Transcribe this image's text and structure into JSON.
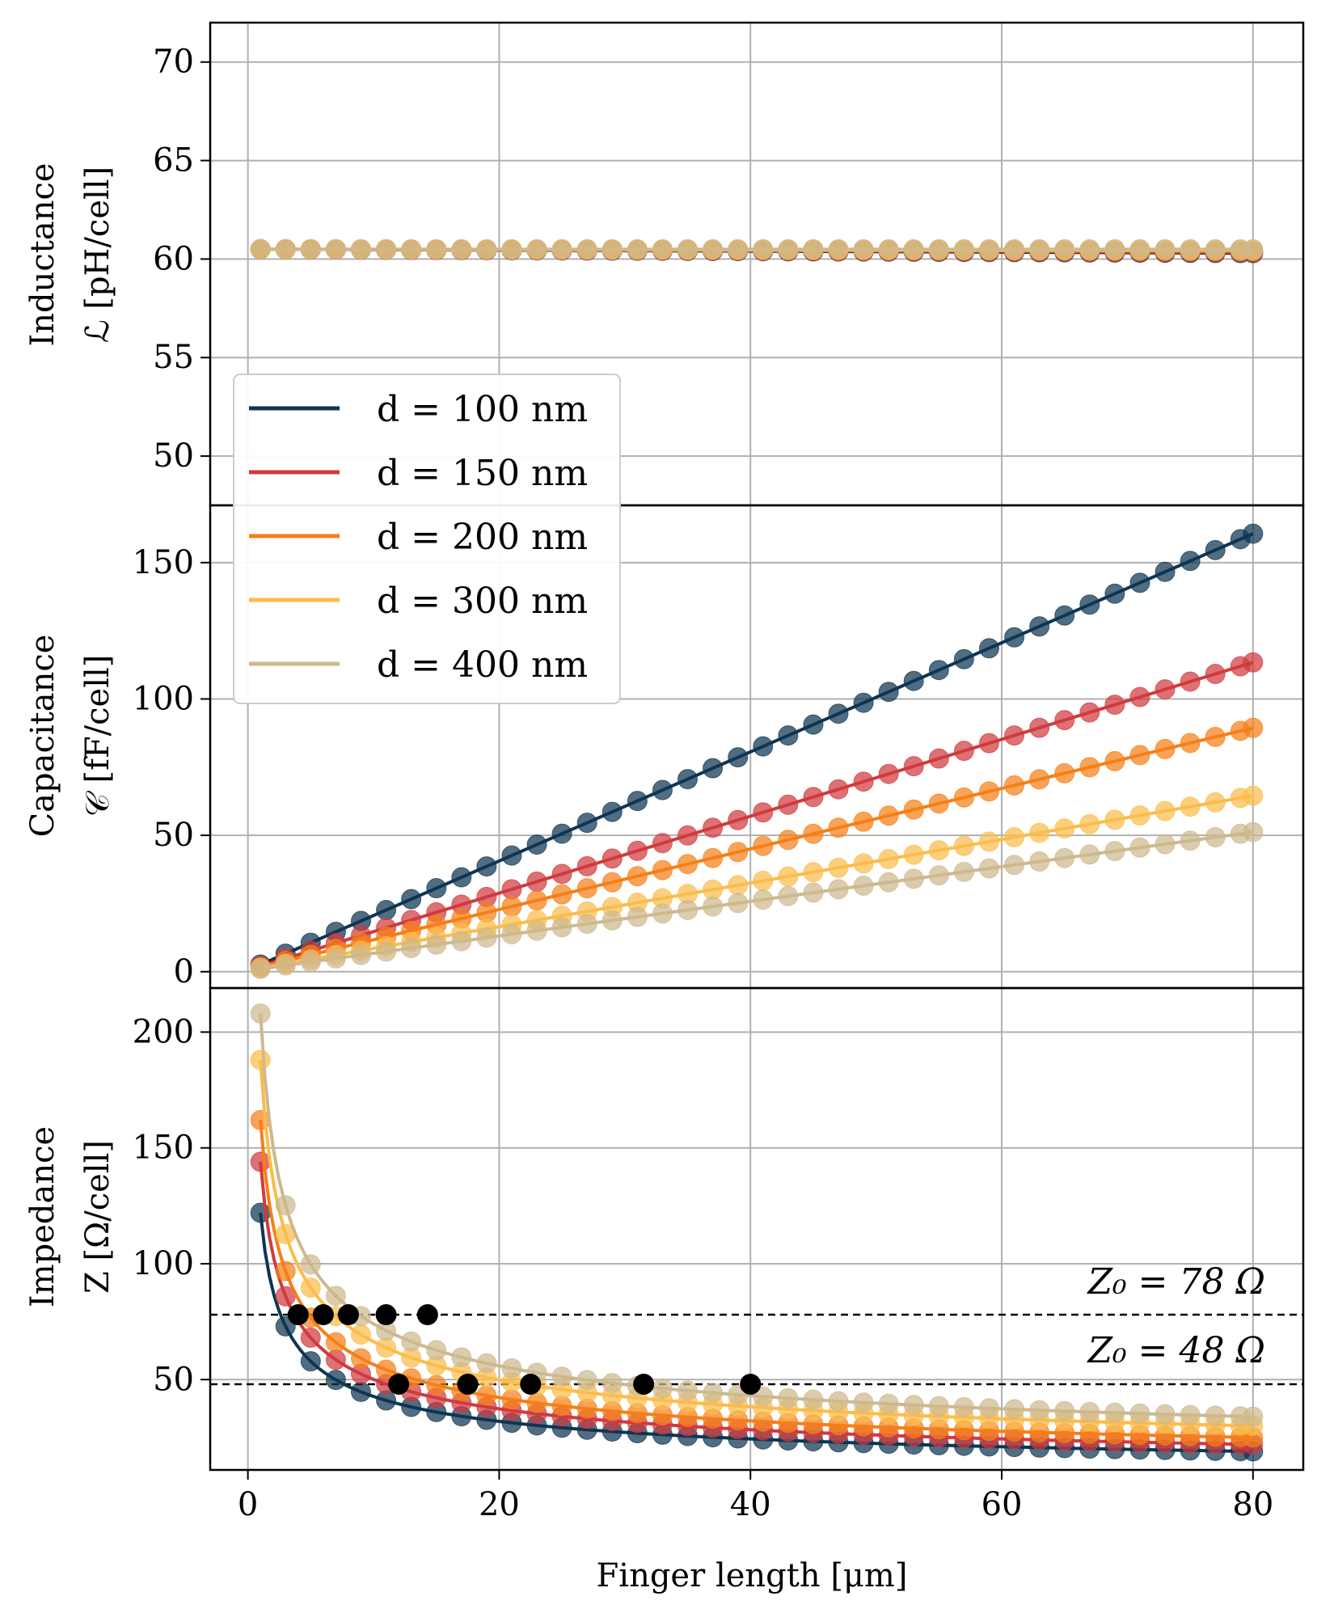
{
  "chart_data": {
    "type": "line",
    "xlabel": "Finger length [μm]",
    "xlim": [
      -3,
      84
    ],
    "xticks": [
      0,
      20,
      40,
      60,
      80
    ],
    "x": [
      1,
      3,
      5,
      7,
      9,
      11,
      13,
      15,
      17,
      19,
      21,
      23,
      25,
      27,
      29,
      31,
      33,
      35,
      37,
      39,
      41,
      43,
      45,
      47,
      49,
      51,
      53,
      55,
      57,
      59,
      61,
      63,
      65,
      67,
      69,
      71,
      73,
      75,
      77,
      79,
      80
    ],
    "colors": {
      "d100": "#0e3552",
      "d150": "#d03a3e",
      "d200": "#f57f17",
      "d300": "#fbbc4c",
      "d400": "#cdb98e"
    },
    "legend": [
      {
        "key": "d100",
        "label": "d = 100 nm"
      },
      {
        "key": "d150",
        "label": "d = 150 nm"
      },
      {
        "key": "d200",
        "label": "d = 200 nm"
      },
      {
        "key": "d300",
        "label": "d = 300 nm"
      },
      {
        "key": "d400",
        "label": "d = 400 nm"
      }
    ],
    "panels": [
      {
        "id": "inductance",
        "ylabel_line1": "Inductance",
        "ylabel_line2": "ℒ [pH/cell]",
        "ylim": [
          47.5,
          72
        ],
        "yticks": [
          50,
          55,
          60,
          65,
          70
        ],
        "series": [
          {
            "key": "d100",
            "value_at_start": 60.5,
            "value_at_end": 60.3
          },
          {
            "key": "d150",
            "value_at_start": 60.5,
            "value_at_end": 60.35
          },
          {
            "key": "d200",
            "value_at_start": 60.5,
            "value_at_end": 60.4
          },
          {
            "key": "d300",
            "value_at_start": 60.5,
            "value_at_end": 60.45
          },
          {
            "key": "d400",
            "value_at_start": 60.5,
            "value_at_end": 60.5
          }
        ]
      },
      {
        "id": "capacitance",
        "ylabel_line1": "Capacitance",
        "ylabel_line2": "𝒞 [fF/cell]",
        "ylim": [
          -6,
          171
        ],
        "yticks": [
          0,
          50,
          100,
          150
        ],
        "series": [
          {
            "key": "d100",
            "slope_per_um": 2.0,
            "intercept": 0.6
          },
          {
            "key": "d150",
            "slope_per_um": 1.41,
            "intercept": 0.6
          },
          {
            "key": "d200",
            "slope_per_um": 1.11,
            "intercept": 0.6
          },
          {
            "key": "d300",
            "slope_per_um": 0.8,
            "intercept": 0.5
          },
          {
            "key": "d400",
            "slope_per_um": 0.635,
            "intercept": 0.4
          }
        ]
      },
      {
        "id": "impedance",
        "ylabel_line1": "Impedance",
        "ylabel_line2": "Z [Ω/cell]",
        "ylim": [
          11,
          219
        ],
        "yticks": [
          50,
          100,
          150,
          200
        ],
        "series": [
          {
            "key": "d100",
            "value_at_1um": 122,
            "value_at_80um": 19
          },
          {
            "key": "d150",
            "value_at_1um": 144,
            "value_at_80um": 22
          },
          {
            "key": "d200",
            "value_at_1um": 162,
            "value_at_80um": 25
          },
          {
            "key": "d300",
            "value_at_1um": 188,
            "value_at_80um": 30
          },
          {
            "key": "d400",
            "value_at_1um": 208,
            "value_at_80um": 34
          }
        ],
        "reference_lines": [
          {
            "value": 78,
            "label": "Z₀ = 78 Ω"
          },
          {
            "value": 48,
            "label": "Z₀ = 48 Ω"
          }
        ],
        "match_points": [
          {
            "x": 4,
            "y": 78
          },
          {
            "x": 6,
            "y": 78
          },
          {
            "x": 8,
            "y": 78
          },
          {
            "x": 11,
            "y": 78
          },
          {
            "x": 14.3,
            "y": 78
          },
          {
            "x": 12,
            "y": 48
          },
          {
            "x": 17.5,
            "y": 48
          },
          {
            "x": 22.5,
            "y": 48
          },
          {
            "x": 31.5,
            "y": 48
          },
          {
            "x": 40,
            "y": 48
          }
        ]
      }
    ]
  }
}
